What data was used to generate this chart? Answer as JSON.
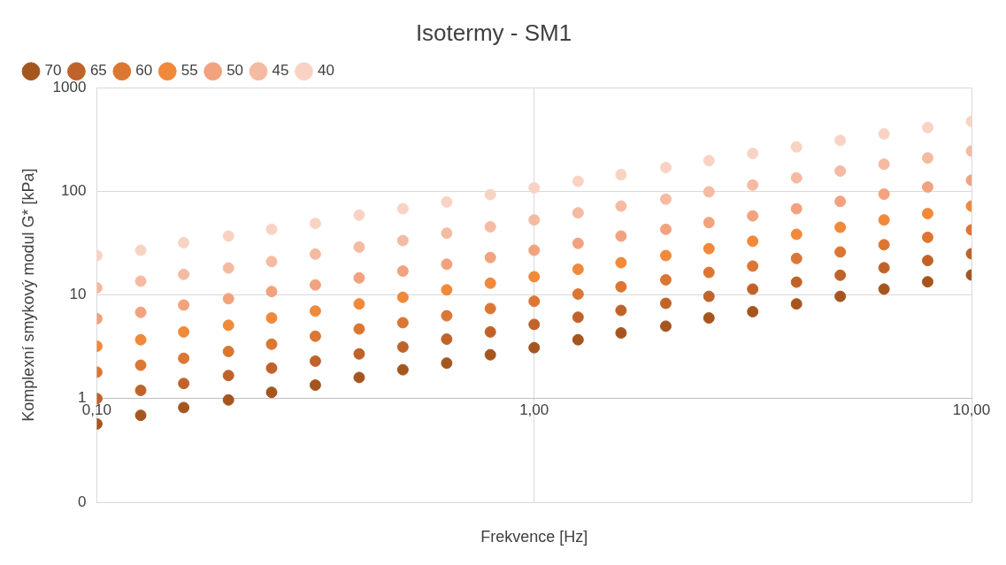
{
  "chart_data": {
    "type": "scatter",
    "title": "Isotermy - SM1",
    "xlabel": "Frekvence [Hz]",
    "ylabel": "Komplexní smykový modul G* [kPa]",
    "x": [
      0.1,
      0.126,
      0.158,
      0.2,
      0.251,
      0.316,
      0.398,
      0.501,
      0.631,
      0.794,
      1,
      1.26,
      1.58,
      2,
      2.51,
      3.16,
      3.98,
      5.01,
      6.31,
      7.94,
      10
    ],
    "series": [
      {
        "name": "70",
        "color": "#a5561f",
        "values": [
          0.57,
          0.69,
          0.82,
          0.97,
          1.15,
          1.35,
          1.6,
          1.9,
          2.2,
          2.65,
          3.1,
          3.7,
          4.3,
          5.0,
          6.0,
          6.9,
          8.2,
          9.7,
          11.4,
          13.4,
          15.6
        ]
      },
      {
        "name": "65",
        "color": "#c0632a",
        "values": [
          1.0,
          1.2,
          1.4,
          1.67,
          1.97,
          2.3,
          2.7,
          3.15,
          3.75,
          4.4,
          5.2,
          6.1,
          7.1,
          8.3,
          9.7,
          11.4,
          13.3,
          15.5,
          18.3,
          21.5,
          25
        ]
      },
      {
        "name": "60",
        "color": "#dc7633",
        "values": [
          1.8,
          2.1,
          2.45,
          2.85,
          3.35,
          4,
          4.7,
          5.4,
          6.3,
          7.4,
          8.7,
          10.2,
          12,
          14,
          16.5,
          19,
          22.5,
          26,
          30.5,
          36,
          42.5
        ]
      },
      {
        "name": "55",
        "color": "#f0893a",
        "values": [
          3.2,
          3.7,
          4.4,
          5.1,
          6,
          7,
          8.2,
          9.5,
          11.2,
          13,
          15,
          17.7,
          20.5,
          24,
          28,
          33,
          38.5,
          45,
          53,
          61,
          72
        ]
      },
      {
        "name": "50",
        "color": "#f2a27e",
        "values": [
          5.9,
          6.8,
          8,
          9.2,
          10.8,
          12.5,
          14.6,
          17,
          19.8,
          23,
          27,
          31.5,
          37,
          43,
          50,
          58,
          68,
          80,
          94,
          110,
          128
        ]
      },
      {
        "name": "45",
        "color": "#f5baa2",
        "values": [
          11.7,
          13.6,
          15.8,
          18.2,
          21,
          24.8,
          29,
          33.5,
          39.5,
          45.5,
          53,
          62,
          72,
          84,
          99,
          115,
          135,
          157,
          183,
          210,
          245
        ]
      },
      {
        "name": "40",
        "color": "#f8d3c4",
        "values": [
          24,
          27,
          32,
          37,
          43,
          49,
          59,
          68,
          79,
          93,
          108,
          125,
          145,
          170,
          198,
          232,
          268,
          310,
          358,
          413,
          473
        ]
      }
    ],
    "log": "xy",
    "xlim": [
      0.1,
      10
    ],
    "xticks": [
      {
        "value": 0.1,
        "label": "0,10"
      },
      {
        "value": 1,
        "label": "1,00"
      },
      {
        "value": 10,
        "label": "10,00"
      }
    ],
    "ylim": [
      0.1,
      1000
    ],
    "yticks": [
      {
        "value": 0.1,
        "label": "0"
      },
      1,
      10,
      100,
      1000
    ],
    "grid": true,
    "legend": "top left",
    "marker": "circle"
  }
}
